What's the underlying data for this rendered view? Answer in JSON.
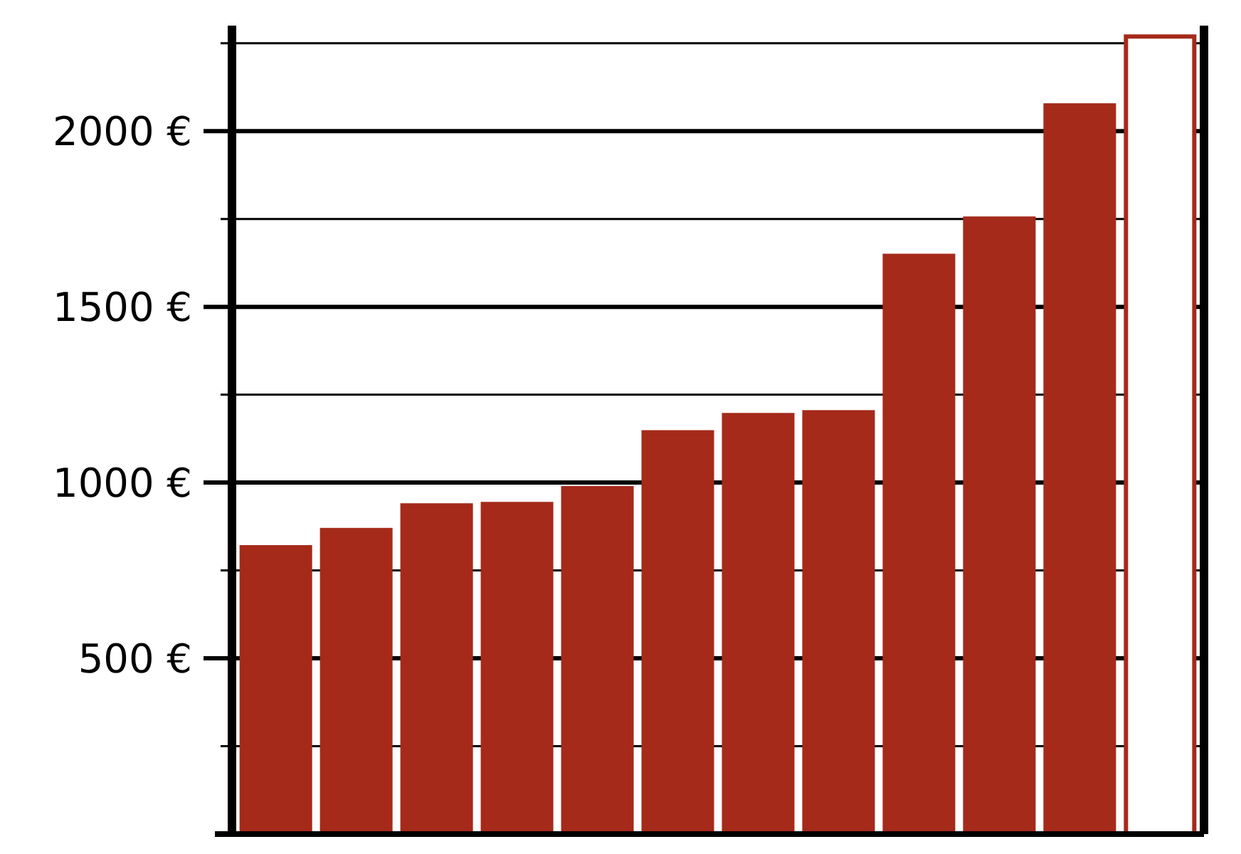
{
  "chart_data": {
    "type": "bar",
    "categories": [
      null,
      null,
      null,
      null,
      null,
      null,
      null,
      null,
      null,
      null,
      null,
      null
    ],
    "values": [
      816,
      865,
      935,
      939,
      984,
      1143,
      1192,
      1200,
      1645,
      1751,
      2073,
      2269
    ],
    "color": "#a52a1a",
    "colors": [
      "#a52a1a",
      "#a52a1a",
      "#a52a1a",
      "#a52a1a",
      "#a52a1a",
      "#a52a1a",
      "#a52a1a",
      "#a52a1a",
      "#a52a1a",
      "#a52a1a",
      "#a52a1a",
      "#ffffff"
    ],
    "ylim": [
      0,
      2300
    ],
    "yticks": [
      {
        "value": 250,
        "label": null
      },
      {
        "value": 500,
        "label": "500 €"
      },
      {
        "value": 750,
        "label": null
      },
      {
        "value": 1000,
        "label": "1000 €"
      },
      {
        "value": 1250,
        "label": null
      },
      {
        "value": 1500,
        "label": "1500 €"
      },
      {
        "value": 1750,
        "label": null
      },
      {
        "value": 2000,
        "label": "2000 €"
      },
      {
        "value": 2250,
        "label": null
      }
    ],
    "grid": true
  }
}
